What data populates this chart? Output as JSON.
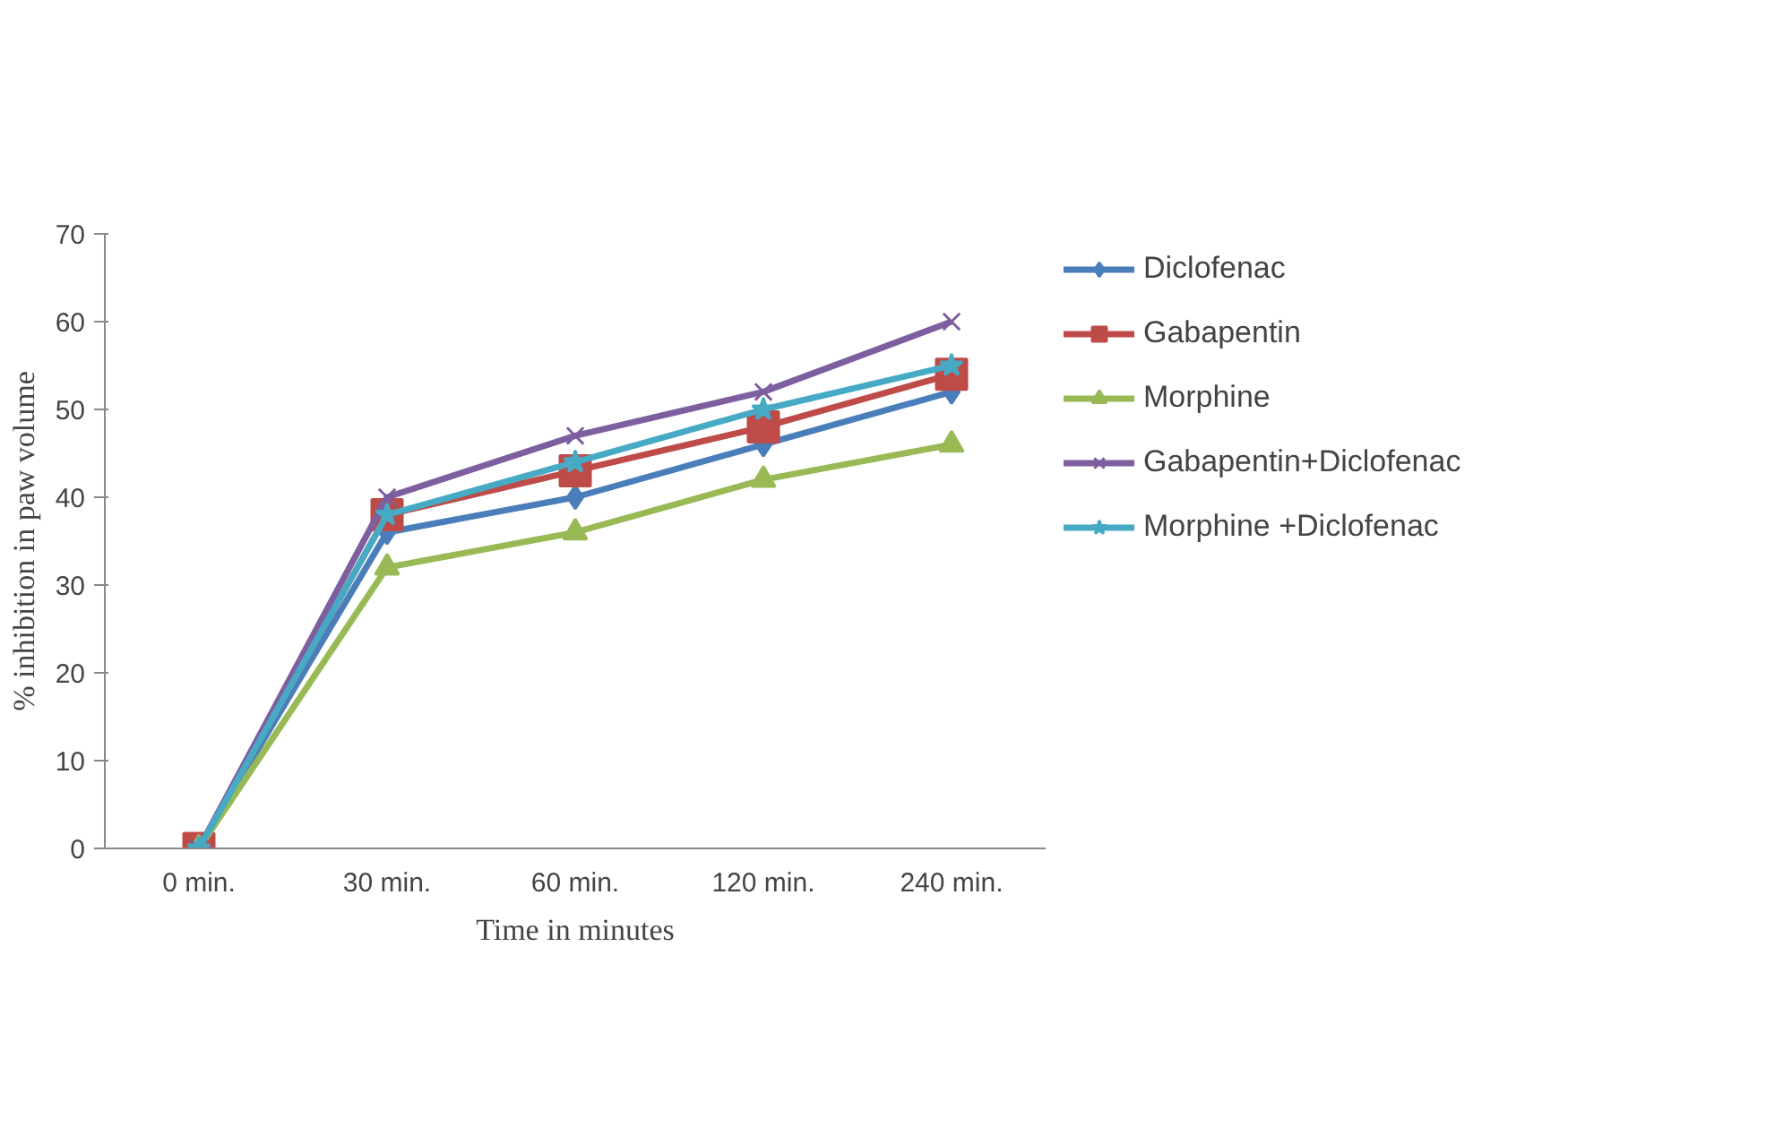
{
  "chart_data": {
    "type": "line",
    "xlabel": "Time in minutes",
    "ylabel": "% inhibition in paw volume",
    "categories": [
      "0 min.",
      "30 min.",
      "60 min.",
      "120 min.",
      "240 min."
    ],
    "ylim": [
      0,
      70
    ],
    "yticks": [
      0,
      10,
      20,
      30,
      40,
      50,
      60,
      70
    ],
    "grid": false,
    "legend": "right",
    "series": [
      {
        "name": "Diclofenac",
        "color": "#4a7ebb",
        "marker": "diamond",
        "values": [
          0,
          36,
          40,
          46,
          52
        ]
      },
      {
        "name": "Gabapentin",
        "color": "#be4b48",
        "marker": "square",
        "values": [
          0,
          38,
          43,
          48,
          54
        ]
      },
      {
        "name": "Morphine",
        "color": "#98b954",
        "marker": "triangle",
        "values": [
          0,
          32,
          36,
          42,
          46
        ]
      },
      {
        "name": "Gabapentin+Diclofenac",
        "color": "#7d5fa0",
        "marker": "cross",
        "values": [
          0,
          40,
          47,
          52,
          60
        ]
      },
      {
        "name": "Morphine +Diclofenac",
        "color": "#46aac5",
        "marker": "star",
        "values": [
          0,
          38,
          44,
          50,
          55
        ]
      }
    ]
  }
}
